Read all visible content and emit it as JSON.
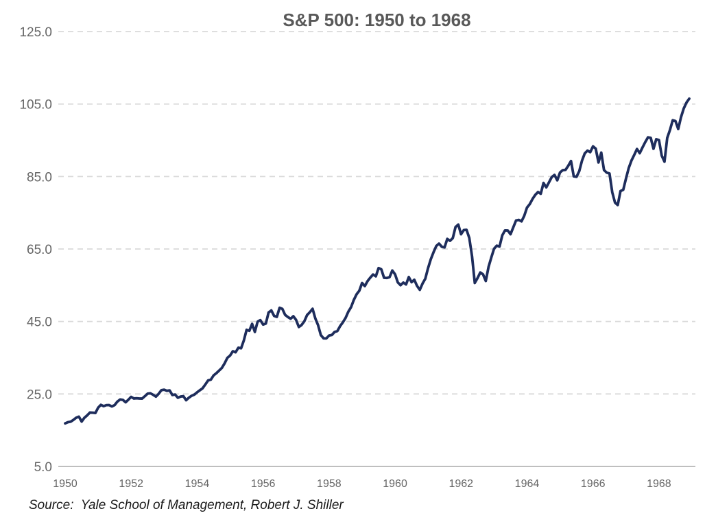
{
  "source": {
    "text": "Source:  Yale School of Management, Robert J. Shiller"
  },
  "chart_data": {
    "type": "line",
    "title": "S&P 500: 1950 to 1968",
    "xlabel": "",
    "ylabel": "",
    "x_start_year": 1950,
    "points_per_year": 12,
    "x_range": [
      1950,
      1969
    ],
    "ylim": [
      5.0,
      125.0
    ],
    "yticks": [
      5.0,
      25.0,
      45.0,
      65.0,
      85.0,
      105.0,
      125.0
    ],
    "ytick_labels": [
      "5.0",
      "25.0",
      "45.0",
      "65.0",
      "85.0",
      "105.0",
      "125.0"
    ],
    "xticks": [
      1950,
      1952,
      1954,
      1956,
      1958,
      1960,
      1962,
      1964,
      1966,
      1968
    ],
    "grid": "horizontal-dashed",
    "legend_position": "none",
    "series_name": "S&P 500 (monthly)",
    "values": [
      16.88,
      17.21,
      17.35,
      17.84,
      18.44,
      18.74,
      17.38,
      18.43,
      19.08,
      19.87,
      19.83,
      19.75,
      21.21,
      22.0,
      21.63,
      21.92,
      21.93,
      21.55,
      21.93,
      22.89,
      23.48,
      23.36,
      22.71,
      23.41,
      24.19,
      23.75,
      23.81,
      23.74,
      23.73,
      24.38,
      25.08,
      25.18,
      24.78,
      24.26,
      25.03,
      26.04,
      26.18,
      25.86,
      25.99,
      24.71,
      24.84,
      23.95,
      24.29,
      24.39,
      23.27,
      23.97,
      24.5,
      24.83,
      25.46,
      26.02,
      26.57,
      27.63,
      28.73,
      28.96,
      30.13,
      30.73,
      31.45,
      32.18,
      33.44,
      34.97,
      35.6,
      36.79,
      36.5,
      37.76,
      37.6,
      39.78,
      42.69,
      42.43,
      44.34,
      42.11,
      44.95,
      45.37,
      44.15,
      44.43,
      47.49,
      48.05,
      46.54,
      46.27,
      48.78,
      48.49,
      46.84,
      46.24,
      45.76,
      46.44,
      45.43,
      43.47,
      44.03,
      45.05,
      46.78,
      47.55,
      48.51,
      45.84,
      43.98,
      41.24,
      40.35,
      40.33,
      41.12,
      41.26,
      42.11,
      42.34,
      43.7,
      44.75,
      45.98,
      47.7,
      48.96,
      50.95,
      52.5,
      53.49,
      55.62,
      54.77,
      56.15,
      57.1,
      57.96,
      57.46,
      59.74,
      59.4,
      57.05,
      57.0,
      57.23,
      59.06,
      58.03,
      55.78,
      55.02,
      55.73,
      55.22,
      57.26,
      55.84,
      56.51,
      54.81,
      53.73,
      55.47,
      56.8,
      59.72,
      62.17,
      64.12,
      65.83,
      66.5,
      65.62,
      65.44,
      67.79,
      67.26,
      68.0,
      71.08,
      71.74,
      69.07,
      70.22,
      70.29,
      68.05,
      62.99,
      55.63,
      56.97,
      58.52,
      58.0,
      56.17,
      60.04,
      62.64,
      65.06,
      65.92,
      65.67,
      68.76,
      70.14,
      70.11,
      69.07,
      70.98,
      72.85,
      73.03,
      72.62,
      74.17,
      76.45,
      77.39,
      78.8,
      79.94,
      80.72,
      80.24,
      83.22,
      82.0,
      83.41,
      84.85,
      85.44,
      83.96,
      86.12,
      86.75,
      86.83,
      87.97,
      89.28,
      85.04,
      84.91,
      86.49,
      89.38,
      91.39,
      92.15,
      91.73,
      93.32,
      92.69,
      88.88,
      91.6,
      86.78,
      86.06,
      85.84,
      80.65,
      77.81,
      77.13,
      80.99,
      81.33,
      84.45,
      87.36,
      89.42,
      90.96,
      92.59,
      91.43,
      93.01,
      94.49,
      95.81,
      95.66,
      92.66,
      95.3,
      95.04,
      90.75,
      89.09,
      95.67,
      97.87,
      100.53,
      100.3,
      98.11,
      101.34,
      103.76,
      105.4,
      106.48
    ],
    "colors": {
      "line": "#1e2d5c",
      "grid": "#d9d9d9",
      "axis": "#bfbfbf",
      "tick_label": "#666666",
      "title": "#595959"
    }
  }
}
